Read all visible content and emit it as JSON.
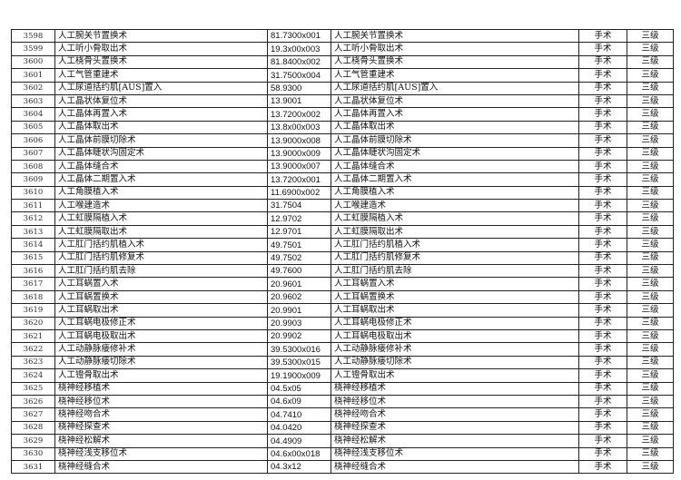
{
  "rows": [
    [
      "3598",
      "人工腕关节置换术",
      "81.7300x001",
      "人工腕关节置换术",
      "手术",
      "三级"
    ],
    [
      "3599",
      "人工听小骨取出术",
      "19.3x00x003",
      "人工听小骨取出术",
      "手术",
      "三级"
    ],
    [
      "3600",
      "人工桡骨头置换术",
      "81.8400x002",
      "人工桡骨头置换术",
      "手术",
      "三级"
    ],
    [
      "3601",
      "人工气管重建术",
      "31.7500x004",
      "人工气管重建术",
      "手术",
      "三级"
    ],
    [
      "3602",
      "人工尿道括约肌[AUS]置入",
      "58.9300",
      "人工尿道括约肌[AUS]置入",
      "手术",
      "三级"
    ],
    [
      "3603",
      "人工晶状体复位术",
      "13.9001",
      "人工晶状体复位术",
      "手术",
      "三级"
    ],
    [
      "3604",
      "人工晶体再置入术",
      "13.7200x002",
      "人工晶体再置入术",
      "手术",
      "三级"
    ],
    [
      "3605",
      "人工晶体取出术",
      "13.8x00x003",
      "人工晶体取出术",
      "手术",
      "三级"
    ],
    [
      "3606",
      "人工晶体前膜切除术",
      "13.9000x008",
      "人工晶体前膜切除术",
      "手术",
      "三级"
    ],
    [
      "3607",
      "人工晶体睫状沟固定术",
      "13.9000x009",
      "人工晶体睫状沟固定术",
      "手术",
      "三级"
    ],
    [
      "3608",
      "人工晶体缝合术",
      "13.9000x007",
      "人工晶体缝合术",
      "手术",
      "三级"
    ],
    [
      "3609",
      "人工晶体二期置入术",
      "13.7200x001",
      "人工晶体二期置入术",
      "手术",
      "三级"
    ],
    [
      "3610",
      "人工角膜植入术",
      "11.6900x002",
      "人工角膜植入术",
      "手术",
      "三级"
    ],
    [
      "3611",
      "人工喉建造术",
      "31.7504",
      "人工喉建造术",
      "手术",
      "三级"
    ],
    [
      "3612",
      "人工虹膜隔植入术",
      "12.9702",
      "人工虹膜隔植入术",
      "手术",
      "三级"
    ],
    [
      "3613",
      "人工虹膜隔取出术",
      "12.9701",
      "人工虹膜隔取出术",
      "手术",
      "三级"
    ],
    [
      "3614",
      "人工肛门括约肌植入术",
      "49.7501",
      "人工肛门括约肌植入术",
      "手术",
      "三级"
    ],
    [
      "3615",
      "人工肛门括约肌修复术",
      "49.7502",
      "人工肛门括约肌修复术",
      "手术",
      "三级"
    ],
    [
      "3616",
      "人工肛门括约肌去除",
      "49.7600",
      "人工肛门括约肌去除",
      "手术",
      "三级"
    ],
    [
      "3617",
      "人工耳蜗置入术",
      "20.9601",
      "人工耳蜗置入术",
      "手术",
      "三级"
    ],
    [
      "3618",
      "人工耳蜗置换术",
      "20.9602",
      "人工耳蜗置换术",
      "手术",
      "三级"
    ],
    [
      "3619",
      "人工耳蜗取出术",
      "20.9901",
      "人工耳蜗取出术",
      "手术",
      "三级"
    ],
    [
      "3620",
      "人工耳蜗电极修正术",
      "20.9903",
      "人工耳蜗电极修正术",
      "手术",
      "三级"
    ],
    [
      "3621",
      "人工耳蜗电极取出术",
      "20.9902",
      "人工耳蜗电极取出术",
      "手术",
      "三级"
    ],
    [
      "3622",
      "人工动静脉瘘修补术",
      "39.5300x016",
      "人工动静脉瘘修补术",
      "手术",
      "三级"
    ],
    [
      "3623",
      "人工动静脉瘘切除术",
      "39.5300x015",
      "人工动静脉瘘切除术",
      "手术",
      "三级"
    ],
    [
      "3624",
      "人工镫骨取出术",
      "19.1900x009",
      "人工镫骨取出术",
      "手术",
      "三级"
    ],
    [
      "3625",
      "桡神经移植术",
      "04.5x05",
      "桡神经移植术",
      "手术",
      "三级"
    ],
    [
      "3626",
      "桡神经移位术",
      "04.6x09",
      "桡神经移位术",
      "手术",
      "三级"
    ],
    [
      "3627",
      "桡神经吻合术",
      "04.7410",
      "桡神经吻合术",
      "手术",
      "三级"
    ],
    [
      "3628",
      "桡神经探查术",
      "04.0420",
      "桡神经探查术",
      "手术",
      "三级"
    ],
    [
      "3629",
      "桡神经松解术",
      "04.4909",
      "桡神经松解术",
      "手术",
      "三级"
    ],
    [
      "3630",
      "桡神经浅支移位术",
      "04.6x00x018",
      "桡神经浅支移位术",
      "手术",
      "三级"
    ],
    [
      "3631",
      "桡神经缝合术",
      "04.3x12",
      "桡神经缝合术",
      "手术",
      "三级"
    ]
  ]
}
